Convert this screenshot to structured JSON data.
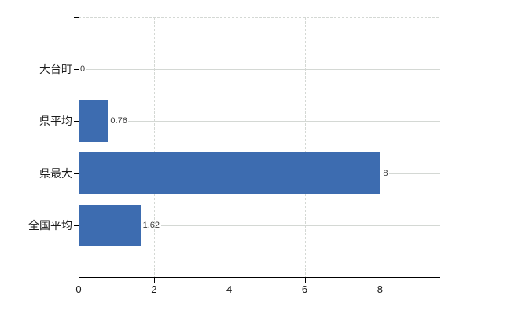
{
  "chart_data": {
    "type": "bar",
    "orientation": "horizontal",
    "title": "",
    "categories": [
      "大台町",
      "県平均",
      "県最大",
      "全国平均"
    ],
    "values": [
      0,
      0.76,
      8,
      1.62
    ],
    "value_labels": [
      "0",
      "0.76",
      "8",
      "1.62"
    ],
    "x_ticks": [
      0,
      2,
      4,
      6,
      8
    ],
    "x_tick_labels": [
      "0",
      "2",
      "4",
      "6",
      "8"
    ],
    "xlim": [
      0,
      9.6
    ],
    "grid": true,
    "legend": false,
    "colors": {
      "bar": "#3d6cb0",
      "grid": "#d4d8d4",
      "axis": "#000000",
      "category_text": "#1a1a1a",
      "tick_text": "#1a1a1a",
      "value_text": "#3a3a3a",
      "background": "#ffffff"
    }
  }
}
